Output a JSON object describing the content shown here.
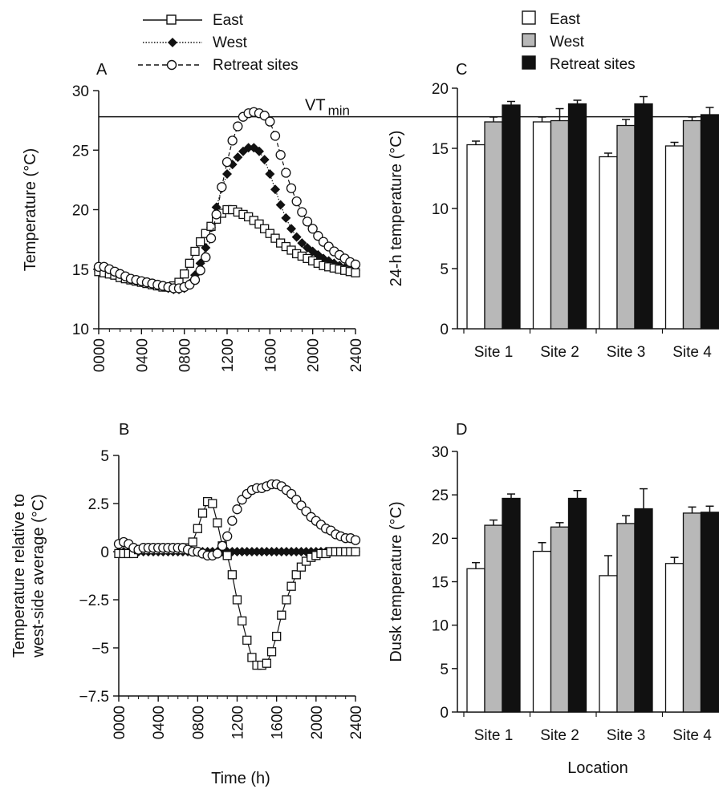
{
  "legend_left": {
    "items": [
      {
        "label": "East",
        "marker": "square-open",
        "line": "solid"
      },
      {
        "label": "West",
        "marker": "diamond-filled",
        "line": "dotted"
      },
      {
        "label": "Retreat sites",
        "marker": "circle-open",
        "line": "dashed"
      }
    ]
  },
  "legend_right": {
    "items": [
      {
        "label": "East",
        "fill": "#ffffff"
      },
      {
        "label": "West",
        "fill": "#b8b8b8"
      },
      {
        "label": "Retreat sites",
        "fill": "#111111"
      }
    ]
  },
  "shared": {
    "time_ticks": [
      "0000",
      "0400",
      "0800",
      "1200",
      "1600",
      "2000",
      "2400"
    ],
    "xlabel_time": "Time (h)",
    "xlabel_location": "Location",
    "sites": [
      "Site 1",
      "Site 2",
      "Site 3",
      "Site 4"
    ]
  },
  "chart_data": [
    {
      "panel": "A",
      "type": "line",
      "ylabel": "Temperature (°C)",
      "xlabel": "",
      "ylim": [
        10,
        30
      ],
      "yticks": [
        10,
        15,
        20,
        25,
        30
      ],
      "xlim": [
        0,
        24
      ],
      "reference_line": {
        "y": 27.8,
        "label": "VT",
        "sub": "min"
      },
      "x": [
        0,
        0.5,
        1,
        1.5,
        2,
        2.5,
        3,
        3.5,
        4,
        4.5,
        5,
        5.5,
        6,
        6.5,
        7,
        7.5,
        8,
        8.5,
        9,
        9.5,
        10,
        10.5,
        11,
        11.5,
        12,
        12.5,
        13,
        13.5,
        14,
        14.5,
        15,
        15.5,
        16,
        16.5,
        17,
        17.5,
        18,
        18.5,
        19,
        19.5,
        20,
        20.5,
        21,
        21.5,
        22,
        22.5,
        23,
        23.5,
        24
      ],
      "series": [
        {
          "name": "East",
          "marker": "square-open",
          "values": [
            14.8,
            14.7,
            14.6,
            14.5,
            14.3,
            14.2,
            14.1,
            14.0,
            13.9,
            13.8,
            13.7,
            13.6,
            13.5,
            13.5,
            13.6,
            13.9,
            14.6,
            15.5,
            16.5,
            17.3,
            18.0,
            18.6,
            19.2,
            19.7,
            20.0,
            20.0,
            19.8,
            19.6,
            19.4,
            19.1,
            18.8,
            18.4,
            18.0,
            17.6,
            17.2,
            16.9,
            16.6,
            16.3,
            16.1,
            15.9,
            15.7,
            15.5,
            15.3,
            15.2,
            15.1,
            15.0,
            14.9,
            14.8,
            14.7
          ]
        },
        {
          "name": "West",
          "marker": "diamond-filled",
          "values": [
            14.8,
            14.7,
            14.6,
            14.5,
            14.3,
            14.2,
            14.1,
            14.0,
            13.9,
            13.8,
            13.7,
            13.6,
            13.5,
            13.4,
            13.3,
            13.3,
            13.4,
            13.8,
            14.5,
            15.5,
            16.8,
            18.5,
            20.2,
            21.8,
            23.0,
            23.8,
            24.4,
            24.9,
            25.2,
            25.2,
            24.9,
            24.2,
            23.0,
            21.7,
            20.4,
            19.3,
            18.4,
            17.7,
            17.2,
            16.8,
            16.5,
            16.2,
            15.9,
            15.7,
            15.5,
            15.3,
            15.1,
            15.0,
            14.9
          ]
        },
        {
          "name": "Retreat sites",
          "marker": "circle-open",
          "values": [
            15.2,
            15.2,
            15.0,
            14.8,
            14.6,
            14.4,
            14.2,
            14.1,
            14.0,
            13.9,
            13.8,
            13.7,
            13.6,
            13.5,
            13.4,
            13.4,
            13.5,
            13.7,
            14.1,
            14.9,
            16.0,
            17.6,
            19.6,
            21.9,
            24.0,
            25.8,
            27.0,
            27.8,
            28.1,
            28.2,
            28.1,
            27.9,
            27.4,
            26.2,
            24.6,
            23.1,
            21.8,
            20.7,
            19.8,
            19.0,
            18.4,
            17.8,
            17.3,
            16.9,
            16.5,
            16.2,
            15.9,
            15.6,
            15.4
          ]
        }
      ]
    },
    {
      "panel": "B",
      "type": "line",
      "ylabel": "Temperature relative to west-side average (°C)",
      "ylabel_lines": [
        "Temperature relative to",
        "west-side average (°C)"
      ],
      "xlabel": "Time (h)",
      "ylim": [
        -7.5,
        5
      ],
      "yticks": [
        -7.5,
        -5,
        -2.5,
        0,
        2.5,
        5
      ],
      "ytick_labels": [
        "−7.5",
        "−5",
        "−2.5",
        "0",
        "2.5",
        "5"
      ],
      "xlim": [
        0,
        24
      ],
      "x": [
        0,
        0.5,
        1,
        1.5,
        2,
        2.5,
        3,
        3.5,
        4,
        4.5,
        5,
        5.5,
        6,
        6.5,
        7,
        7.5,
        8,
        8.5,
        9,
        9.5,
        10,
        10.5,
        11,
        11.5,
        12,
        12.5,
        13,
        13.5,
        14,
        14.5,
        15,
        15.5,
        16,
        16.5,
        17,
        17.5,
        18,
        18.5,
        19,
        19.5,
        20,
        20.5,
        21,
        21.5,
        22,
        22.5,
        23,
        23.5,
        24
      ],
      "series": [
        {
          "name": "East",
          "marker": "square-open",
          "values": [
            -0.1,
            -0.1,
            -0.1,
            -0.1,
            0.1,
            0.1,
            0.1,
            0.1,
            0.1,
            0.1,
            0.1,
            0.1,
            0.1,
            0.1,
            0.2,
            0.5,
            1.2,
            2.0,
            2.6,
            2.5,
            1.5,
            0.3,
            -0.2,
            -1.2,
            -2.5,
            -3.6,
            -4.6,
            -5.5,
            -5.9,
            -5.9,
            -5.8,
            -5.2,
            -4.4,
            -3.3,
            -2.5,
            -1.8,
            -1.2,
            -0.8,
            -0.5,
            -0.3,
            -0.2,
            -0.1,
            -0.1,
            0,
            0,
            0,
            0,
            0,
            0
          ]
        },
        {
          "name": "West",
          "marker": "diamond-filled",
          "values": [
            0,
            0,
            0,
            0,
            0,
            0,
            0,
            0,
            0,
            0,
            0,
            0,
            0,
            0,
            0,
            0,
            0,
            0,
            0,
            0,
            0,
            0,
            0,
            0,
            0,
            0,
            0,
            0,
            0,
            0,
            0,
            0,
            0,
            0,
            0,
            0,
            0,
            0,
            0,
            0,
            0,
            0,
            0,
            0,
            0,
            0,
            0,
            0,
            0
          ]
        },
        {
          "name": "Retreat sites",
          "marker": "circle-open",
          "values": [
            0.4,
            0.5,
            0.4,
            0.2,
            0.1,
            0.2,
            0.2,
            0.2,
            0.2,
            0.2,
            0.2,
            0.2,
            0.2,
            0.2,
            0.1,
            0,
            0,
            -0.1,
            -0.2,
            -0.2,
            -0.1,
            0.3,
            0.8,
            1.6,
            2.2,
            2.7,
            3.0,
            3.2,
            3.3,
            3.3,
            3.4,
            3.5,
            3.5,
            3.4,
            3.2,
            3.0,
            2.7,
            2.4,
            2.1,
            1.8,
            1.6,
            1.4,
            1.2,
            1.1,
            0.9,
            0.8,
            0.7,
            0.7,
            0.6
          ]
        }
      ]
    },
    {
      "panel": "C",
      "type": "bar",
      "ylabel": "24-h temperature (°C)",
      "xlabel": "",
      "ylim": [
        0,
        20
      ],
      "yticks": [
        0,
        5,
        10,
        15,
        20
      ],
      "categories": [
        "Site 1",
        "Site 2",
        "Site 3",
        "Site 4"
      ],
      "series": [
        {
          "name": "East",
          "values": [
            15.3,
            17.2,
            14.3,
            15.2
          ],
          "errors": [
            0.3,
            0.4,
            0.3,
            0.3
          ]
        },
        {
          "name": "West",
          "values": [
            17.2,
            17.3,
            16.9,
            17.3
          ],
          "errors": [
            0.4,
            1.0,
            0.5,
            0.3
          ]
        },
        {
          "name": "Retreat sites",
          "values": [
            18.6,
            18.7,
            18.7,
            17.8
          ],
          "errors": [
            0.3,
            0.3,
            0.6,
            0.6
          ]
        }
      ]
    },
    {
      "panel": "D",
      "type": "bar",
      "ylabel": "Dusk temperature (°C)",
      "xlabel": "Location",
      "ylim": [
        0,
        30
      ],
      "yticks": [
        0,
        5,
        10,
        15,
        20,
        25,
        30
      ],
      "categories": [
        "Site 1",
        "Site 2",
        "Site 3",
        "Site 4"
      ],
      "series": [
        {
          "name": "East",
          "values": [
            16.5,
            18.5,
            15.7,
            17.1
          ],
          "errors": [
            0.7,
            1.0,
            2.3,
            0.7
          ]
        },
        {
          "name": "West",
          "values": [
            21.5,
            21.3,
            21.7,
            22.9
          ],
          "errors": [
            0.6,
            0.5,
            0.9,
            0.7
          ]
        },
        {
          "name": "Retreat sites",
          "values": [
            24.6,
            24.6,
            23.4,
            23.0
          ],
          "errors": [
            0.5,
            0.9,
            2.3,
            0.7
          ]
        }
      ]
    }
  ]
}
